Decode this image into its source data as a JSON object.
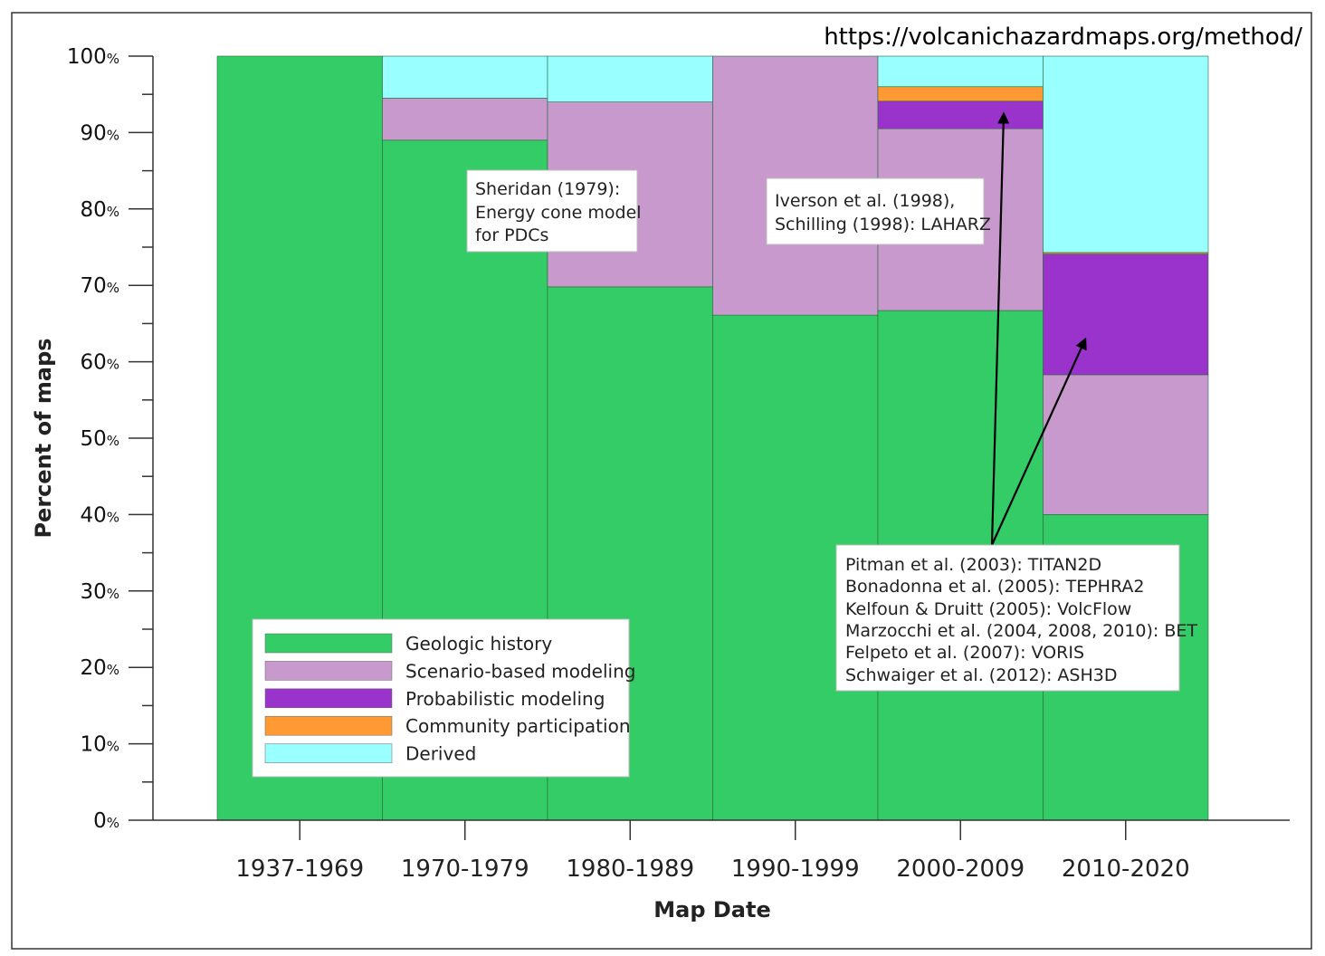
{
  "source_url": "https://volcanichazardmaps.org/method/",
  "chart_data": {
    "type": "bar",
    "stacked": true,
    "title": "",
    "xlabel": "Map Date",
    "ylabel": "Percent of maps",
    "ylim": [
      0,
      100
    ],
    "y_ticks": [
      0,
      10,
      20,
      30,
      40,
      50,
      60,
      70,
      80,
      90,
      100
    ],
    "y_tick_suffix": "%",
    "categories": [
      "1937-1969",
      "1970-1979",
      "1980-1989",
      "1990-1999",
      "2000-2009",
      "2010-2020"
    ],
    "series": [
      {
        "name": "Geologic history",
        "color": "#33cc66",
        "values": [
          100,
          89,
          69.8,
          66.1,
          66.7,
          40
        ]
      },
      {
        "name": "Scenario-based modeling",
        "color": "#c899cc",
        "values": [
          0,
          5.5,
          24.2,
          33.9,
          23.8,
          18.3
        ]
      },
      {
        "name": "Probabilistic modeling",
        "color": "#9933cc",
        "values": [
          0,
          0,
          0,
          0,
          3.6,
          15.8
        ]
      },
      {
        "name": "Community participation",
        "color": "#ff9933",
        "values": [
          0,
          0,
          0,
          0,
          1.9,
          0.2
        ]
      },
      {
        "name": "Derived",
        "color": "#99ffff",
        "values": [
          0,
          5.5,
          6,
          0,
          4,
          25.7
        ]
      }
    ],
    "legend_position": "bottom-left",
    "grid": false,
    "annotations": [
      {
        "id": "sheridan",
        "lines": [
          "Sheridan (1979):",
          "Energy cone model",
          "for PDCs"
        ]
      },
      {
        "id": "iverson",
        "lines": [
          "Iverson et al. (1998),",
          "Schilling (1998): LAHARZ"
        ]
      },
      {
        "id": "pitman",
        "lines": [
          "Pitman et al. (2003): TITAN2D",
          "Bonadonna et al. (2005): TEPHRA2",
          "Kelfoun & Druitt (2005): VolcFlow",
          "Marzocchi et al. (2004, 2008, 2010): BET",
          "Felpeto et al. (2007): VORIS",
          "Schwaiger et al. (2012): ASH3D"
        ]
      }
    ],
    "arrows": [
      {
        "from_annotation": "pitman",
        "to_category": "2000-2009",
        "to_series": "Probabilistic modeling"
      },
      {
        "from_annotation": "pitman",
        "to_category": "2010-2020",
        "to_series": "Probabilistic modeling"
      }
    ]
  }
}
